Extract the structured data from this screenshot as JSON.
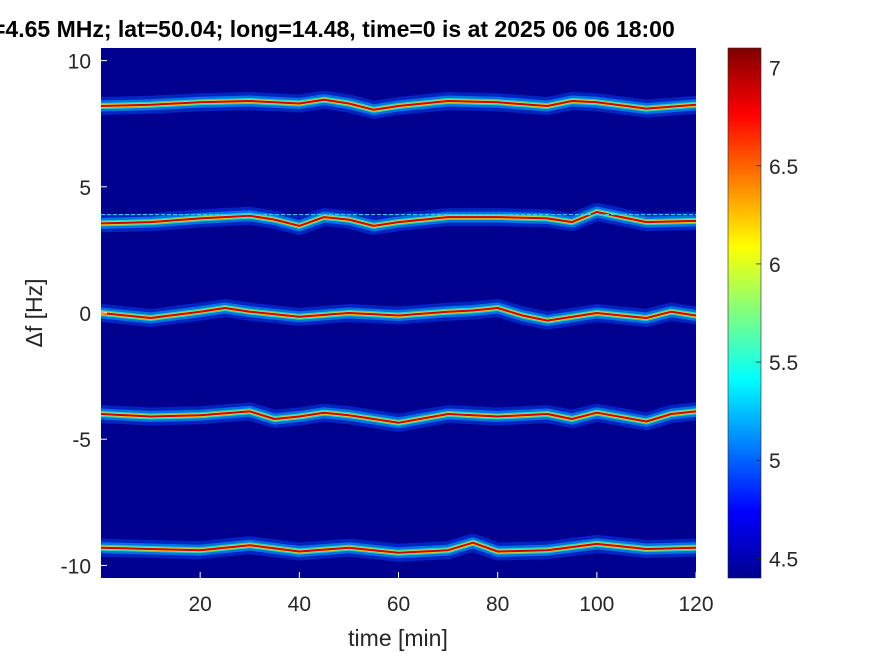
{
  "chart_data": {
    "type": "heatmap",
    "title": "=4.65 MHz;  lat=50.04; long=14.48, time=0 is at 2025 06 06 18:00",
    "xlabel": "time [min]",
    "ylabel": "Δf [Hz]",
    "xlim": [
      0,
      120
    ],
    "ylim": [
      -10.5,
      10.5
    ],
    "xticks": [
      20,
      40,
      60,
      80,
      100,
      120
    ],
    "yticks": [
      10,
      5,
      0,
      -5,
      -10
    ],
    "colorbar": {
      "range": [
        4.4,
        7.1
      ],
      "ticks": [
        7,
        6.5,
        6,
        5.5,
        5,
        4.5
      ],
      "colormap": "jet"
    },
    "background_level": 4.4,
    "series": [
      {
        "center": 8.3,
        "points": [
          [
            0,
            8.2
          ],
          [
            10,
            8.25
          ],
          [
            20,
            8.35
          ],
          [
            30,
            8.4
          ],
          [
            40,
            8.3
          ],
          [
            45,
            8.45
          ],
          [
            50,
            8.3
          ],
          [
            55,
            8.05
          ],
          [
            60,
            8.2
          ],
          [
            70,
            8.4
          ],
          [
            80,
            8.35
          ],
          [
            90,
            8.2
          ],
          [
            95,
            8.4
          ],
          [
            100,
            8.35
          ],
          [
            110,
            8.1
          ],
          [
            120,
            8.25
          ]
        ]
      },
      {
        "center": 3.7,
        "points": [
          [
            0,
            3.55
          ],
          [
            10,
            3.6
          ],
          [
            20,
            3.75
          ],
          [
            30,
            3.85
          ],
          [
            35,
            3.7
          ],
          [
            40,
            3.45
          ],
          [
            45,
            3.8
          ],
          [
            50,
            3.7
          ],
          [
            55,
            3.45
          ],
          [
            60,
            3.6
          ],
          [
            70,
            3.8
          ],
          [
            80,
            3.8
          ],
          [
            90,
            3.75
          ],
          [
            95,
            3.6
          ],
          [
            100,
            4.0
          ],
          [
            105,
            3.8
          ],
          [
            110,
            3.6
          ],
          [
            120,
            3.65
          ]
        ]
      },
      {
        "center": 0,
        "points": [
          [
            0,
            0
          ],
          [
            10,
            -0.2
          ],
          [
            20,
            0.05
          ],
          [
            25,
            0.2
          ],
          [
            30,
            0.05
          ],
          [
            40,
            -0.15
          ],
          [
            50,
            0
          ],
          [
            60,
            -0.1
          ],
          [
            70,
            0.05
          ],
          [
            75,
            0.1
          ],
          [
            80,
            0.2
          ],
          [
            85,
            -0.1
          ],
          [
            90,
            -0.3
          ],
          [
            100,
            0
          ],
          [
            110,
            -0.2
          ],
          [
            115,
            0.05
          ],
          [
            120,
            -0.1
          ]
        ]
      },
      {
        "center": -4.1,
        "points": [
          [
            0,
            -4.0
          ],
          [
            10,
            -4.1
          ],
          [
            20,
            -4.05
          ],
          [
            30,
            -3.9
          ],
          [
            35,
            -4.2
          ],
          [
            40,
            -4.1
          ],
          [
            45,
            -3.95
          ],
          [
            50,
            -4.05
          ],
          [
            60,
            -4.35
          ],
          [
            70,
            -4.0
          ],
          [
            80,
            -4.1
          ],
          [
            90,
            -4.0
          ],
          [
            95,
            -4.2
          ],
          [
            100,
            -3.95
          ],
          [
            110,
            -4.3
          ],
          [
            115,
            -4.0
          ],
          [
            120,
            -3.9
          ]
        ]
      },
      {
        "center": -9.4,
        "points": [
          [
            0,
            -9.3
          ],
          [
            10,
            -9.35
          ],
          [
            20,
            -9.4
          ],
          [
            30,
            -9.2
          ],
          [
            40,
            -9.45
          ],
          [
            50,
            -9.3
          ],
          [
            60,
            -9.5
          ],
          [
            70,
            -9.4
          ],
          [
            75,
            -9.1
          ],
          [
            80,
            -9.45
          ],
          [
            90,
            -9.4
          ],
          [
            100,
            -9.15
          ],
          [
            110,
            -9.35
          ],
          [
            120,
            -9.3
          ]
        ]
      }
    ],
    "reference_line": {
      "y": 3.9,
      "color": "#00c8ff",
      "style": "dashed"
    }
  },
  "colors": {
    "background": "#00008f",
    "trace_core": "#c00000",
    "reference_line": "#33ccff"
  }
}
